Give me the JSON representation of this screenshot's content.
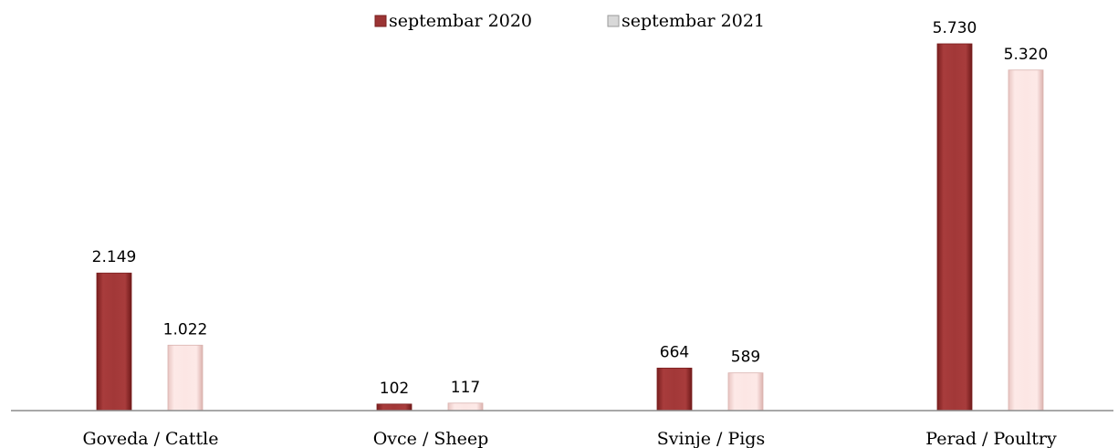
{
  "chart_data": {
    "type": "bar",
    "categories": [
      "Goveda / Cattle",
      "Ovce / Sheep",
      "Svinje / Pigs",
      "Perad / Poultry"
    ],
    "series": [
      {
        "name": "septembar 2020",
        "values": [
          2149,
          102,
          664,
          5730
        ],
        "labels": [
          "2.149",
          "102",
          "664",
          "5.730"
        ],
        "color": "#9b3434"
      },
      {
        "name": "septembar 2021",
        "values": [
          1022,
          117,
          589,
          5320
        ],
        "labels": [
          "1.022",
          "117",
          "589",
          "5.320"
        ],
        "color": "#fbe3e1"
      }
    ],
    "ylim": [
      0,
      5730
    ],
    "grid": false,
    "legend": "top-center"
  }
}
